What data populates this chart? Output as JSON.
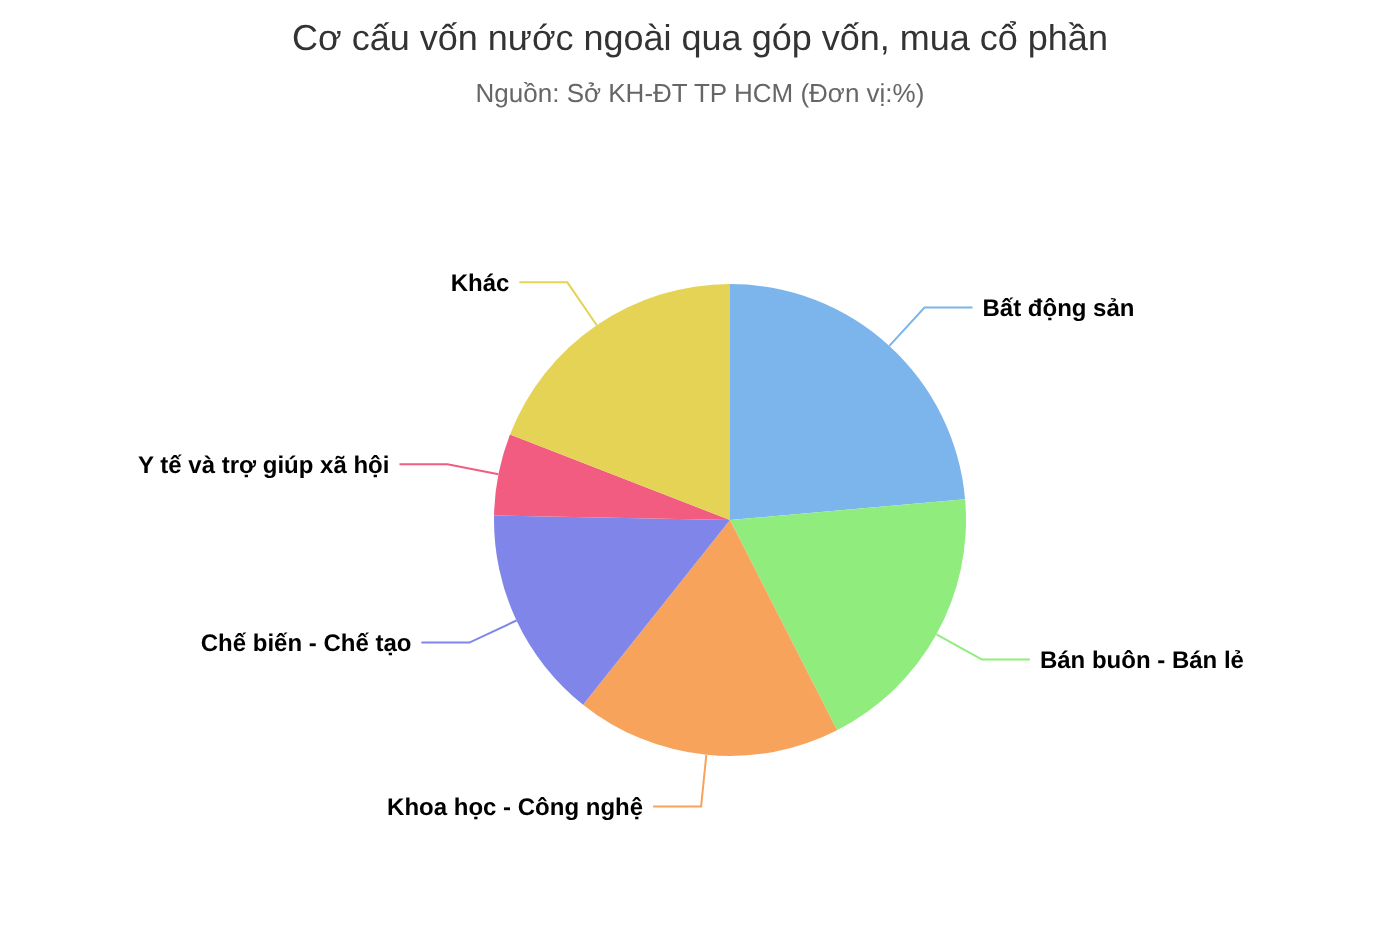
{
  "chart_data": {
    "type": "pie",
    "title": "Cơ cấu vốn nước ngoài qua góp vốn, mua cổ phần",
    "subtitle": "Nguồn: Sở KH-ĐT TP HCM (Đơn vị:%)",
    "categories": [
      "Bất động sản",
      "Bán buôn - Bán lẻ",
      "Khoa học - Công nghệ",
      "Chế biến - Chế tạo",
      "Y tế và trợ giúp xã hội",
      "Khác"
    ],
    "values": [
      23.6,
      18.9,
      18.2,
      14.6,
      5.6,
      19.1
    ],
    "colors": [
      "#7cb5ec",
      "#90ed7d",
      "#f7a35c",
      "#8085e9",
      "#f15c80",
      "#e4d354"
    ]
  }
}
